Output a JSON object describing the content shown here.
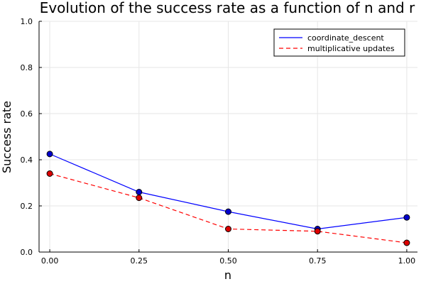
{
  "chart_data": {
    "type": "line",
    "title": "Evolution of the success rate as a function of n and r",
    "xlabel": "n",
    "ylabel": "Success rate",
    "xlim": [
      -0.03,
      1.03
    ],
    "ylim": [
      0,
      1
    ],
    "x": [
      0.0,
      0.25,
      0.5,
      0.75,
      1.0
    ],
    "xticks": [
      "0.00",
      "0.25",
      "0.50",
      "0.75",
      "1.00"
    ],
    "yticks": [
      "0.0",
      "0.2",
      "0.4",
      "0.6",
      "0.8",
      "1.0"
    ],
    "grid": true,
    "legend_position": "top-right",
    "series": [
      {
        "name": "coordinate_descent",
        "values": [
          0.425,
          0.26,
          0.175,
          0.1,
          0.15
        ],
        "color": "#0000ff",
        "dash": "solid",
        "marker_color": "#0000cc"
      },
      {
        "name": "multiplicative updates",
        "values": [
          0.34,
          0.235,
          0.1,
          0.09,
          0.04
        ],
        "color": "#ff0000",
        "dash": "dashed",
        "marker_color": "#dd0000"
      }
    ]
  }
}
